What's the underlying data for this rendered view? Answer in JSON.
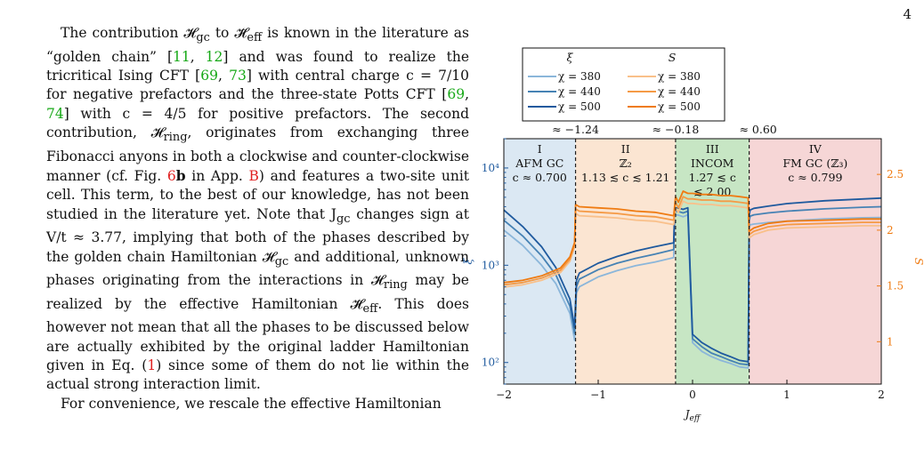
{
  "page_number": "4",
  "paragraphs": [
    [
      {
        "t": "The contribution 𝓗"
      },
      {
        "t": "gc",
        "sub": true
      },
      {
        "t": " to 𝓗̃"
      },
      {
        "t": "eff",
        "sub": true
      },
      {
        "t": " is known in the literature as “golden chain” ["
      },
      {
        "t": "11",
        "cls": "cite"
      },
      {
        "t": ", "
      },
      {
        "t": "12",
        "cls": "cite"
      },
      {
        "t": "] and was found to realize the tricritical Ising CFT ["
      },
      {
        "t": "69",
        "cls": "cite"
      },
      {
        "t": ", "
      },
      {
        "t": "73",
        "cls": "cite"
      },
      {
        "t": "] with central charge c = 7/10 for negative prefactors and the three-state Potts CFT ["
      },
      {
        "t": "69",
        "cls": "cite"
      },
      {
        "t": ", "
      },
      {
        "t": "74",
        "cls": "cite"
      },
      {
        "t": "] with c = 4/5 for positive prefactors. The second contribution, 𝓗"
      },
      {
        "t": "ring",
        "sub": true
      },
      {
        "t": ", originates from exchanging three Fibonacci anyons in both a clockwise and counter-clockwise manner (cf. Fig. "
      },
      {
        "t": "6",
        "cls": "ref"
      },
      {
        "t": "b",
        "bold": true
      },
      {
        "t": " in App. "
      },
      {
        "t": "B",
        "cls": "ref"
      },
      {
        "t": ") and features a two-site unit cell. This term, to the best of our knowledge, has not been studied in the literature yet. Note that J"
      },
      {
        "t": "gc",
        "sub": true
      },
      {
        "t": " changes sign at V/t ≈ 3.77, implying that both of the phases described by the golden chain Hamiltonian 𝓗"
      },
      {
        "t": "gc",
        "sub": true
      },
      {
        "t": " and additional, unknown phases originating from the interactions in 𝓗"
      },
      {
        "t": "ring",
        "sub": true
      },
      {
        "t": " may be realized by the effective Hamiltonian 𝓗̃"
      },
      {
        "t": "eff",
        "sub": true
      },
      {
        "t": ". This does however not mean that all the phases to be discussed below are actually exhibited by the original ladder Hamiltonian given in Eq. ("
      },
      {
        "t": "1",
        "cls": "ref"
      },
      {
        "t": ") since some of them do not lie within the actual strong interaction limit."
      }
    ],
    [
      {
        "t": "For convenience, we rescale the effective Hamiltonian"
      }
    ]
  ],
  "legend": {
    "xi_header": "ξ",
    "s_header": "S",
    "entries": [
      "χ = 380",
      "χ = 440",
      "χ = 500"
    ]
  },
  "boundary_labels": [
    "≈ −1.24",
    "≈ −0.18",
    "≈ 0.60"
  ],
  "phases": [
    {
      "numeral": "I",
      "name": "AFM GC",
      "charge": [
        "c ≈ 0.700"
      ],
      "color": "#dbe8f3"
    },
    {
      "numeral": "II",
      "name": "ℤ₂",
      "charge": [
        "1.13 ≲ c ≲ 1.21"
      ],
      "color": "#fbe5d2"
    },
    {
      "numeral": "III",
      "name": "INCOM",
      "charge": [
        "1.27 ≲ c",
        "≲ 2.00"
      ],
      "color": "#c7e6c4"
    },
    {
      "numeral": "IV",
      "name": "FM GC (ℤ₃)",
      "charge": [
        "c ≈ 0.799"
      ],
      "color": "#f6d6d6"
    }
  ],
  "chart_data": {
    "type": "line",
    "xlabel": "J_eff",
    "ylabel_left": "ξ",
    "ylabel_right": "S",
    "xlim": [
      -2,
      2
    ],
    "ylim_left": [
      60,
      20000
    ],
    "yscale_left": "log",
    "ylim_right": [
      0.62,
      2.82
    ],
    "x_ticks": [
      -2,
      -1,
      0,
      1,
      2
    ],
    "x_tick_labels": [
      "−2",
      "−1",
      "0",
      "1",
      "2"
    ],
    "left_ticks": [
      100,
      1000,
      10000
    ],
    "left_tick_labels": [
      "10²",
      "10³",
      "10⁴"
    ],
    "right_ticks": [
      1,
      1.5,
      2,
      2.5
    ],
    "right_tick_labels": [
      "1",
      "1.5",
      "2",
      "2.5"
    ],
    "boundaries": [
      -1.24,
      -0.18,
      0.6
    ],
    "series": [
      {
        "name": "χ = 380",
        "quantity": "xi",
        "color": "#8bb6da",
        "x": [
          -2.0,
          -1.8,
          -1.6,
          -1.45,
          -1.3,
          -1.25,
          -1.23,
          -1.2,
          -1.0,
          -0.8,
          -0.6,
          -0.4,
          -0.2,
          -0.19,
          -0.16,
          -0.1,
          -0.05,
          0.0,
          0.1,
          0.2,
          0.3,
          0.4,
          0.5,
          0.59,
          0.6,
          0.61,
          0.65,
          0.8,
          1.0,
          1.4,
          1.8,
          2.0
        ],
        "y": [
          2300,
          1600,
          1000,
          650,
          320,
          170,
          520,
          600,
          760,
          880,
          990,
          1080,
          1200,
          3200,
          3300,
          3150,
          3300,
          160,
          130,
          115,
          105,
          98,
          90,
          88,
          2400,
          2600,
          2650,
          2750,
          2850,
          3000,
          3080,
          3100
        ]
      },
      {
        "name": "χ = 440",
        "quantity": "xi",
        "color": "#4682b4",
        "x": [
          -2.0,
          -1.8,
          -1.6,
          -1.45,
          -1.3,
          -1.25,
          -1.23,
          -1.2,
          -1.0,
          -0.8,
          -0.6,
          -0.4,
          -0.2,
          -0.19,
          -0.16,
          -0.1,
          -0.05,
          0.0,
          0.1,
          0.2,
          0.3,
          0.4,
          0.5,
          0.59,
          0.6,
          0.61,
          0.65,
          0.8,
          1.0,
          1.4,
          1.8,
          2.0
        ],
        "y": [
          2900,
          2000,
          1250,
          800,
          380,
          200,
          600,
          720,
          900,
          1050,
          1180,
          1300,
          1450,
          3500,
          3600,
          3450,
          3600,
          175,
          145,
          125,
          115,
          105,
          97,
          95,
          2900,
          3200,
          3300,
          3450,
          3600,
          3800,
          3950,
          4000
        ]
      },
      {
        "name": "χ = 500",
        "quantity": "xi",
        "color": "#1f5a9e",
        "x": [
          -2.0,
          -1.8,
          -1.6,
          -1.45,
          -1.3,
          -1.25,
          -1.23,
          -1.2,
          -1.0,
          -0.8,
          -0.6,
          -0.4,
          -0.2,
          -0.19,
          -0.16,
          -0.1,
          -0.05,
          0.0,
          0.1,
          0.2,
          0.3,
          0.4,
          0.5,
          0.59,
          0.6,
          0.61,
          0.65,
          0.8,
          1.0,
          1.4,
          1.8,
          2.0
        ],
        "y": [
          3700,
          2500,
          1550,
          950,
          450,
          230,
          700,
          830,
          1050,
          1230,
          1400,
          1550,
          1700,
          3800,
          3900,
          3750,
          3900,
          195,
          160,
          140,
          125,
          115,
          105,
          102,
          3300,
          3700,
          3850,
          4050,
          4300,
          4600,
          4800,
          4900
        ]
      },
      {
        "name": "χ = 380",
        "quantity": "S",
        "color": "#f9c08a",
        "x": [
          -2.0,
          -1.8,
          -1.6,
          -1.4,
          -1.3,
          -1.25,
          -1.24,
          -1.2,
          -1.0,
          -0.8,
          -0.6,
          -0.4,
          -0.2,
          -0.18,
          -0.15,
          -0.1,
          -0.05,
          0.0,
          0.1,
          0.2,
          0.3,
          0.4,
          0.5,
          0.59,
          0.6,
          0.65,
          0.8,
          1.0,
          1.4,
          1.8,
          2.0
        ],
        "y": [
          1.49,
          1.51,
          1.55,
          1.62,
          1.72,
          1.85,
          2.15,
          2.13,
          2.12,
          2.11,
          2.09,
          2.08,
          2.05,
          2.2,
          2.16,
          2.26,
          2.24,
          2.24,
          2.23,
          2.23,
          2.22,
          2.22,
          2.21,
          2.2,
          1.93,
          1.96,
          2.0,
          2.02,
          2.03,
          2.04,
          2.04
        ]
      },
      {
        "name": "χ = 440",
        "quantity": "S",
        "color": "#f59a45",
        "x": [
          -2.0,
          -1.8,
          -1.6,
          -1.4,
          -1.3,
          -1.25,
          -1.24,
          -1.2,
          -1.0,
          -0.8,
          -0.6,
          -0.4,
          -0.2,
          -0.18,
          -0.15,
          -0.1,
          -0.05,
          0.0,
          0.1,
          0.2,
          0.3,
          0.4,
          0.5,
          0.59,
          0.6,
          0.65,
          0.8,
          1.0,
          1.4,
          1.8,
          2.0
        ],
        "y": [
          1.51,
          1.53,
          1.57,
          1.64,
          1.74,
          1.87,
          2.19,
          2.17,
          2.16,
          2.15,
          2.13,
          2.12,
          2.09,
          2.25,
          2.2,
          2.3,
          2.28,
          2.28,
          2.27,
          2.27,
          2.26,
          2.26,
          2.25,
          2.24,
          1.96,
          1.99,
          2.03,
          2.05,
          2.06,
          2.07,
          2.07
        ]
      },
      {
        "name": "χ = 500",
        "quantity": "S",
        "color": "#ef7b12",
        "x": [
          -2.0,
          -1.8,
          -1.6,
          -1.4,
          -1.3,
          -1.25,
          -1.24,
          -1.2,
          -1.0,
          -0.8,
          -0.6,
          -0.4,
          -0.2,
          -0.18,
          -0.15,
          -0.1,
          -0.05,
          0.0,
          0.1,
          0.2,
          0.3,
          0.4,
          0.5,
          0.59,
          0.6,
          0.65,
          0.8,
          1.0,
          1.4,
          1.8,
          2.0
        ],
        "y": [
          1.53,
          1.55,
          1.59,
          1.66,
          1.76,
          1.89,
          2.23,
          2.21,
          2.2,
          2.19,
          2.17,
          2.16,
          2.13,
          2.3,
          2.25,
          2.35,
          2.33,
          2.33,
          2.32,
          2.32,
          2.31,
          2.31,
          2.3,
          2.29,
          1.99,
          2.02,
          2.06,
          2.08,
          2.09,
          2.1,
          2.1
        ]
      }
    ]
  }
}
